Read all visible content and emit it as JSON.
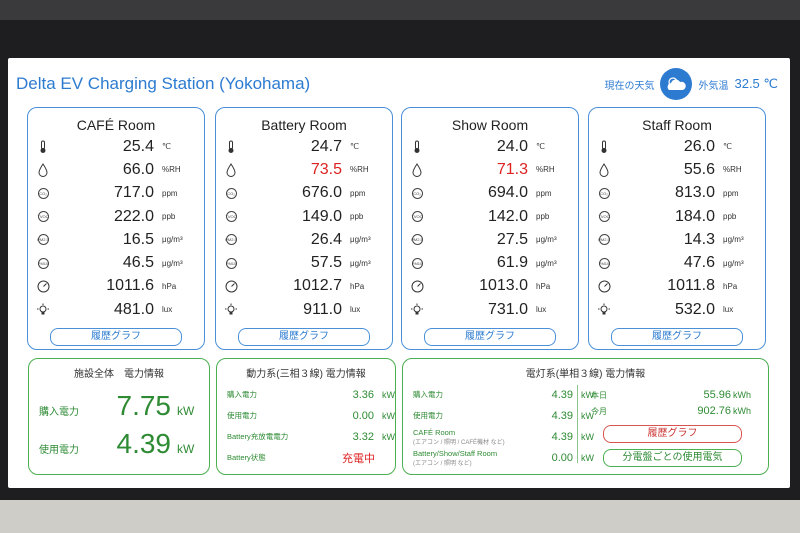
{
  "header": {
    "title": "Delta EV Charging Station (Yokohama)",
    "weather_label": "現在の天気",
    "outdoor_label": "外気温",
    "outdoor_temp": "32.5 ℃"
  },
  "rooms": [
    {
      "name": "CAFÉ Room",
      "temp": "25.4",
      "humidity": "66.0",
      "co2": "717.0",
      "tvoc": "222.0",
      "pm25": "16.5",
      "pm10": "46.5",
      "pressure": "1011.6",
      "lux": "481.0",
      "humidity_alert": false
    },
    {
      "name": "Battery Room",
      "temp": "24.7",
      "humidity": "73.5",
      "co2": "676.0",
      "tvoc": "149.0",
      "pm25": "26.4",
      "pm10": "57.5",
      "pressure": "1012.7",
      "lux": "911.0",
      "humidity_alert": true
    },
    {
      "name": "Show Room",
      "temp": "24.0",
      "humidity": "71.3",
      "co2": "694.0",
      "tvoc": "142.0",
      "pm25": "27.5",
      "pm10": "61.9",
      "pressure": "1013.0",
      "lux": "731.0",
      "humidity_alert": true
    },
    {
      "name": "Staff Room",
      "temp": "26.0",
      "humidity": "55.6",
      "co2": "813.0",
      "tvoc": "184.0",
      "pm25": "14.3",
      "pm10": "47.6",
      "pressure": "1011.8",
      "lux": "532.0",
      "humidity_alert": false
    }
  ],
  "units": {
    "temp": "℃",
    "humidity": "%RH",
    "co2": "ppm",
    "tvoc": "ppb",
    "pm25": "μg/m³",
    "pm10": "μg/m³",
    "pressure": "hPa",
    "lux": "lux"
  },
  "icon_labels": {
    "co2": "CO₂",
    "tvoc": "TVOC",
    "pm25": "PM2.5",
    "pm10": "PM10"
  },
  "history_label": "履歴グラフ",
  "facility": {
    "title": "施設全体　電力情報",
    "purchase_label": "購入電力",
    "purchase_value": "7.75",
    "usage_label": "使用電力",
    "usage_value": "4.39",
    "unit": "kW"
  },
  "power3": {
    "title": "動力系(三相３線) 電力情報",
    "rows": [
      {
        "label": "購入電力",
        "value": "3.36",
        "unit": "kW"
      },
      {
        "label": "使用電力",
        "value": "0.00",
        "unit": "kW"
      },
      {
        "label": "Battery充放電電力",
        "value": "3.32",
        "unit": "kW"
      }
    ],
    "battery_state_label": "Battery状態",
    "battery_state_value": "充電中"
  },
  "lighting": {
    "title": "電灯系(単相３線) 電力情報",
    "rows": [
      {
        "label": "購入電力",
        "sub": "",
        "value": "4.39",
        "unit": "kW"
      },
      {
        "label": "使用電力",
        "sub": "",
        "value": "4.39",
        "unit": "kW"
      },
      {
        "label": "CAFÉ Room",
        "sub": "(エアコン / 照明 / CAFÉ機材 など)",
        "value": "4.39",
        "unit": "kW"
      },
      {
        "label": "Battery/Show/Staff Room",
        "sub": "(エアコン / 照明 など)",
        "value": "0.00",
        "unit": "kW"
      }
    ],
    "today_label": "本日",
    "today_value": "55.96",
    "month_label": "今月",
    "month_value": "902.76",
    "kwh_unit": "kWh",
    "history_button": "履歴グラフ",
    "per_panel_button": "分電盤ごとの使用電気"
  },
  "colors": {
    "accent": "#2d7bd0",
    "green": "#2e8b34",
    "alert": "#d22222"
  }
}
